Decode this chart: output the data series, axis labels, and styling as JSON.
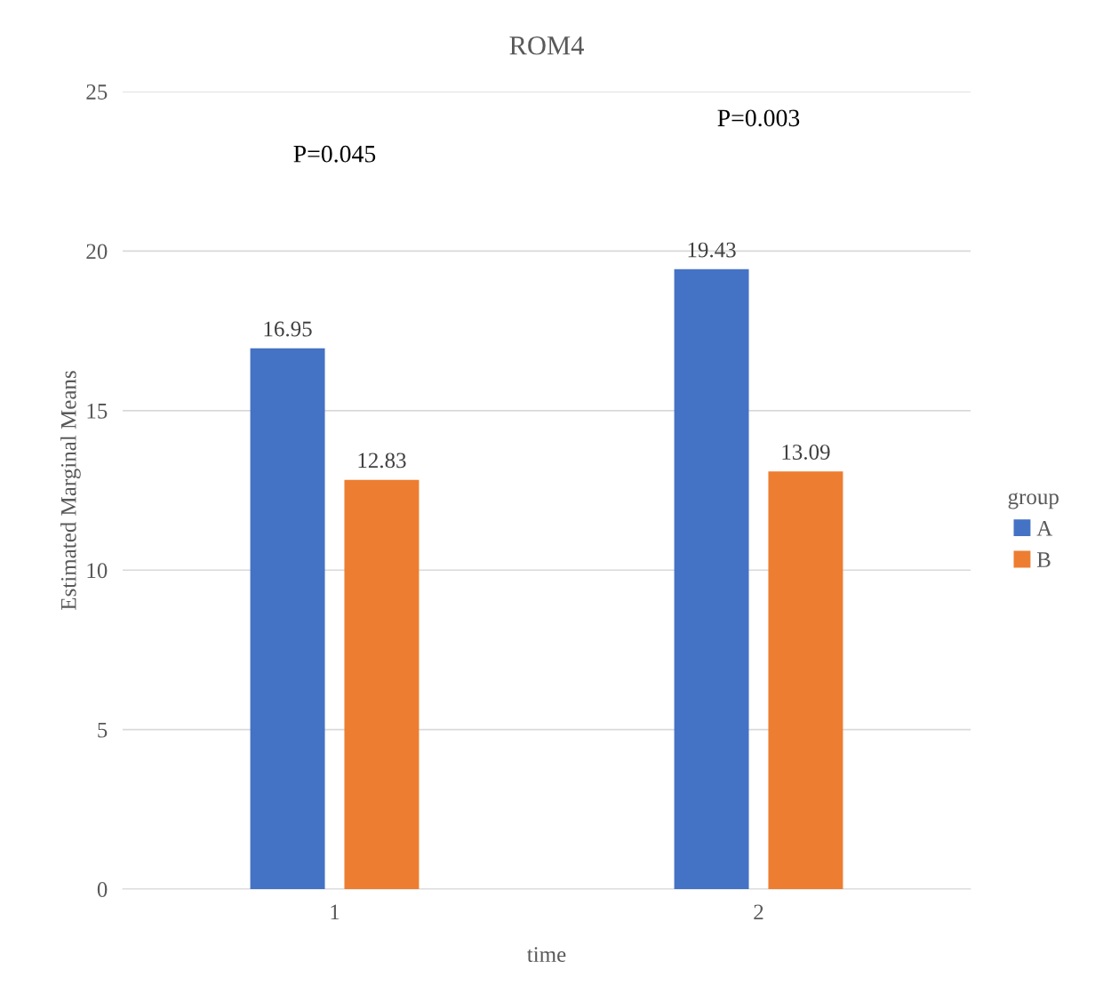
{
  "chart_data": {
    "type": "bar",
    "title": "ROM4",
    "xlabel": "time",
    "ylabel": "Estimated Marginal Means",
    "legend_title": "group",
    "categories": [
      "1",
      "2"
    ],
    "series": [
      {
        "name": "A",
        "color": "#4472c4",
        "values": [
          16.95,
          19.43
        ]
      },
      {
        "name": "B",
        "color": "#ed7d31",
        "values": [
          12.83,
          13.09
        ]
      }
    ],
    "ylim": [
      0,
      25
    ],
    "yticks": [
      0,
      5,
      10,
      15,
      20,
      25
    ],
    "grid": "y",
    "legend": "right",
    "data_labels": true,
    "annotations": [
      "P=0.045",
      "P=0.003"
    ]
  }
}
